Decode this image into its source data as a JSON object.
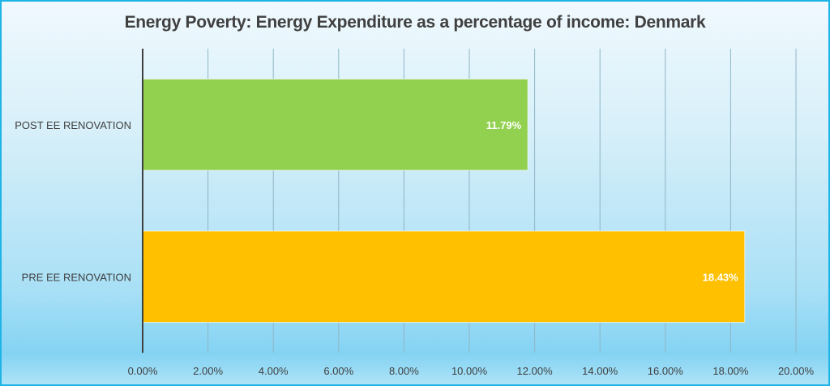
{
  "chart_data": {
    "type": "bar",
    "orientation": "horizontal",
    "title": "Energy Poverty: Energy Expenditure as a percentage of income: Denmark",
    "categories": [
      "POST EE RENOVATION",
      "PRE EE RENOVATION"
    ],
    "values": [
      11.79,
      18.43
    ],
    "data_labels": [
      "11.79%",
      "18.43%"
    ],
    "colors": [
      "#92d050",
      "#ffc000"
    ],
    "xlabel": "",
    "ylabel": "",
    "xlim": [
      0,
      20
    ],
    "x_ticks": [
      "0.00%",
      "2.00%",
      "4.00%",
      "6.00%",
      "8.00%",
      "10.00%",
      "12.00%",
      "14.00%",
      "16.00%",
      "18.00%",
      "20.00%"
    ],
    "grid": true,
    "legend": "none"
  }
}
